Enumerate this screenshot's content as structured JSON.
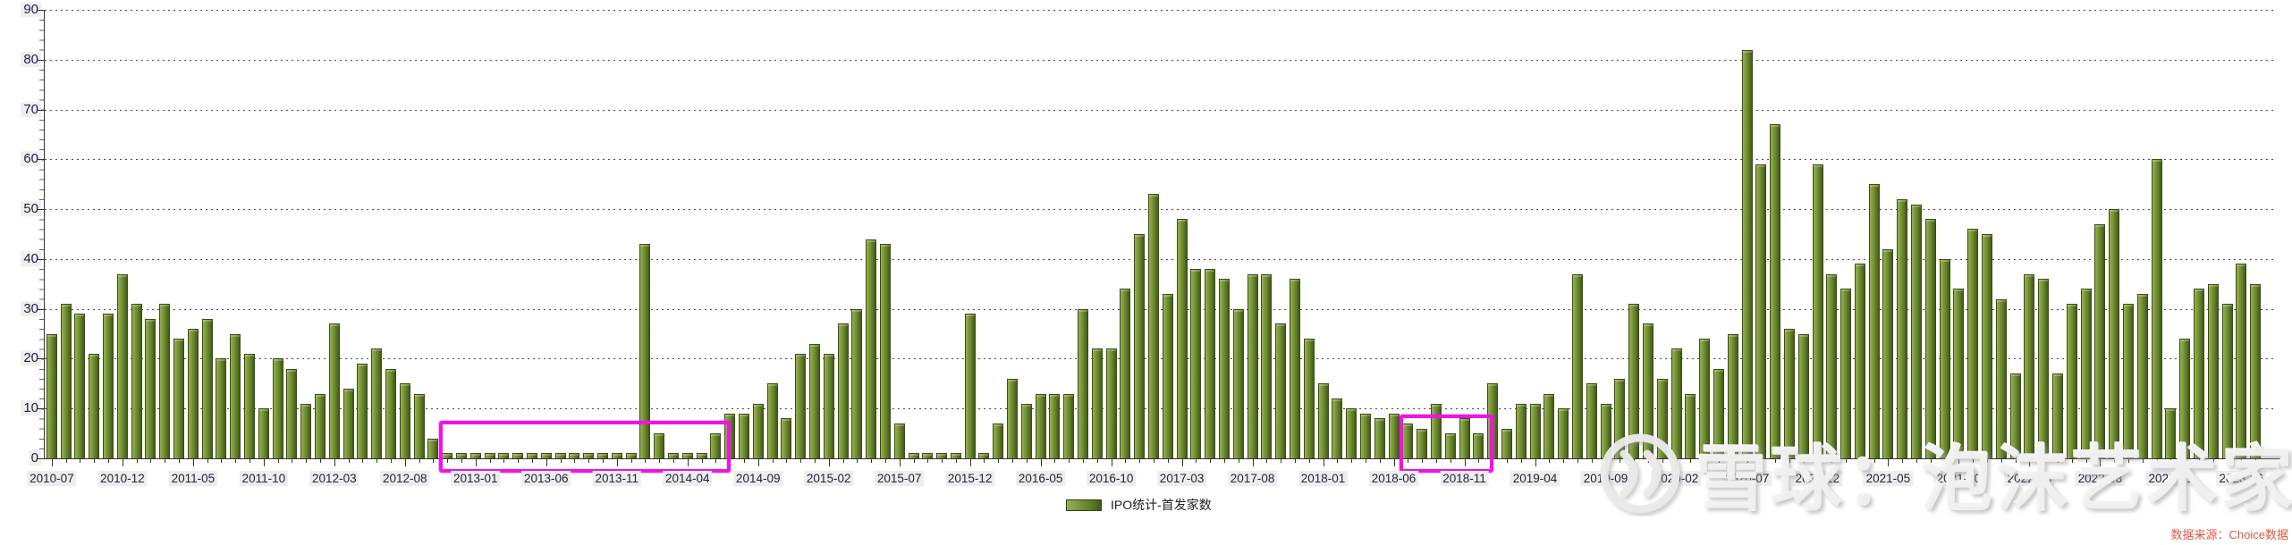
{
  "chart_data": {
    "type": "bar",
    "title": "",
    "ylabel": "",
    "xlabel": "",
    "ylim": [
      0,
      90
    ],
    "yticks": [
      0,
      10,
      20,
      30,
      40,
      50,
      60,
      70,
      80,
      90
    ],
    "grid": "horizontal-dotted",
    "legend_position": "bottom-center",
    "xtick_label_every_n_months": 5,
    "series": [
      {
        "name": "IPO统计-首发家数",
        "color": "#6b8a2e",
        "x": [
          "2010-07",
          "2010-08",
          "2010-09",
          "2010-10",
          "2010-11",
          "2010-12",
          "2011-01",
          "2011-02",
          "2011-03",
          "2011-04",
          "2011-05",
          "2011-06",
          "2011-07",
          "2011-08",
          "2011-09",
          "2011-10",
          "2011-11",
          "2011-12",
          "2012-01",
          "2012-02",
          "2012-03",
          "2012-04",
          "2012-05",
          "2012-06",
          "2012-07",
          "2012-08",
          "2012-09",
          "2012-10",
          "2012-11",
          "2012-12",
          "2013-01",
          "2013-02",
          "2013-03",
          "2013-04",
          "2013-05",
          "2013-06",
          "2013-07",
          "2013-08",
          "2013-09",
          "2013-10",
          "2013-11",
          "2013-12",
          "2014-01",
          "2014-02",
          "2014-03",
          "2014-04",
          "2014-05",
          "2014-06",
          "2014-07",
          "2014-08",
          "2014-09",
          "2014-10",
          "2014-11",
          "2014-12",
          "2015-01",
          "2015-02",
          "2015-03",
          "2015-04",
          "2015-05",
          "2015-06",
          "2015-07",
          "2015-08",
          "2015-09",
          "2015-10",
          "2015-11",
          "2015-12",
          "2016-01",
          "2016-02",
          "2016-03",
          "2016-04",
          "2016-05",
          "2016-06",
          "2016-07",
          "2016-08",
          "2016-09",
          "2016-10",
          "2016-11",
          "2016-12",
          "2017-01",
          "2017-02",
          "2017-03",
          "2017-04",
          "2017-05",
          "2017-06",
          "2017-07",
          "2017-08",
          "2017-09",
          "2017-10",
          "2017-11",
          "2017-12",
          "2018-01",
          "2018-02",
          "2018-03",
          "2018-04",
          "2018-05",
          "2018-06",
          "2018-07",
          "2018-08",
          "2018-09",
          "2018-10",
          "2018-11",
          "2018-12",
          "2019-01",
          "2019-02",
          "2019-03",
          "2019-04",
          "2019-05",
          "2019-06",
          "2019-07",
          "2019-08",
          "2019-09",
          "2019-10",
          "2019-11",
          "2019-12",
          "2020-01",
          "2020-02",
          "2020-03",
          "2020-04",
          "2020-05",
          "2020-06",
          "2020-07",
          "2020-08",
          "2020-09",
          "2020-10",
          "2020-11",
          "2020-12",
          "2021-01",
          "2021-02",
          "2021-03",
          "2021-04",
          "2021-05",
          "2021-06",
          "2021-07",
          "2021-08",
          "2021-09",
          "2021-10",
          "2021-11",
          "2021-12",
          "2022-01",
          "2022-02",
          "2022-03",
          "2022-04",
          "2022-05",
          "2022-06",
          "2022-07",
          "2022-08",
          "2022-09",
          "2022-10",
          "2022-11",
          "2022-12",
          "2023-01",
          "2023-02",
          "2023-03",
          "2023-04",
          "2023-05",
          "2023-06",
          "2023-07"
        ],
        "values": [
          25,
          31,
          29,
          21,
          29,
          37,
          31,
          28,
          31,
          24,
          26,
          28,
          20,
          25,
          21,
          10,
          20,
          18,
          11,
          13,
          27,
          14,
          19,
          22,
          18,
          15,
          13,
          4,
          1,
          1,
          1,
          1,
          1,
          1,
          1,
          1,
          1,
          1,
          1,
          1,
          1,
          1,
          43,
          5,
          1,
          1,
          1,
          5,
          9,
          9,
          11,
          15,
          8,
          21,
          23,
          21,
          27,
          30,
          44,
          43,
          7,
          1,
          1,
          1,
          1,
          29,
          1,
          7,
          16,
          11,
          13,
          13,
          13,
          30,
          22,
          22,
          34,
          45,
          53,
          33,
          48,
          38,
          38,
          36,
          30,
          37,
          37,
          27,
          36,
          24,
          15,
          12,
          10,
          9,
          8,
          9,
          7,
          6,
          11,
          5,
          8,
          5,
          15,
          6,
          11,
          11,
          13,
          10,
          37,
          15,
          11,
          16,
          31,
          27,
          16,
          22,
          13,
          24,
          18,
          25,
          82,
          59,
          67,
          26,
          25,
          59,
          37,
          34,
          39,
          55,
          42,
          52,
          51,
          48,
          40,
          34,
          46,
          45,
          32,
          17,
          37,
          36,
          17,
          31,
          34,
          47,
          50,
          31,
          33,
          60,
          10,
          24,
          34,
          35,
          31,
          39,
          35
        ]
      }
    ],
    "annotations": {
      "highlight_boxes": [
        {
          "from": "2012-11",
          "to": "2014-06",
          "top_value": 7.5,
          "color": "#f013e4"
        },
        {
          "from": "2018-07",
          "to": "2018-12",
          "top_value": 8.8,
          "color": "#f013e4"
        }
      ]
    }
  },
  "legend": {
    "label": "IPO统计-首发家数"
  },
  "watermark": {
    "logo": "xueqiu-snowball-logo",
    "text": "雪球：泡沫艺术家"
  },
  "footer": {
    "source_label": "数据来源：Choice数据",
    "color": "#d95843"
  }
}
